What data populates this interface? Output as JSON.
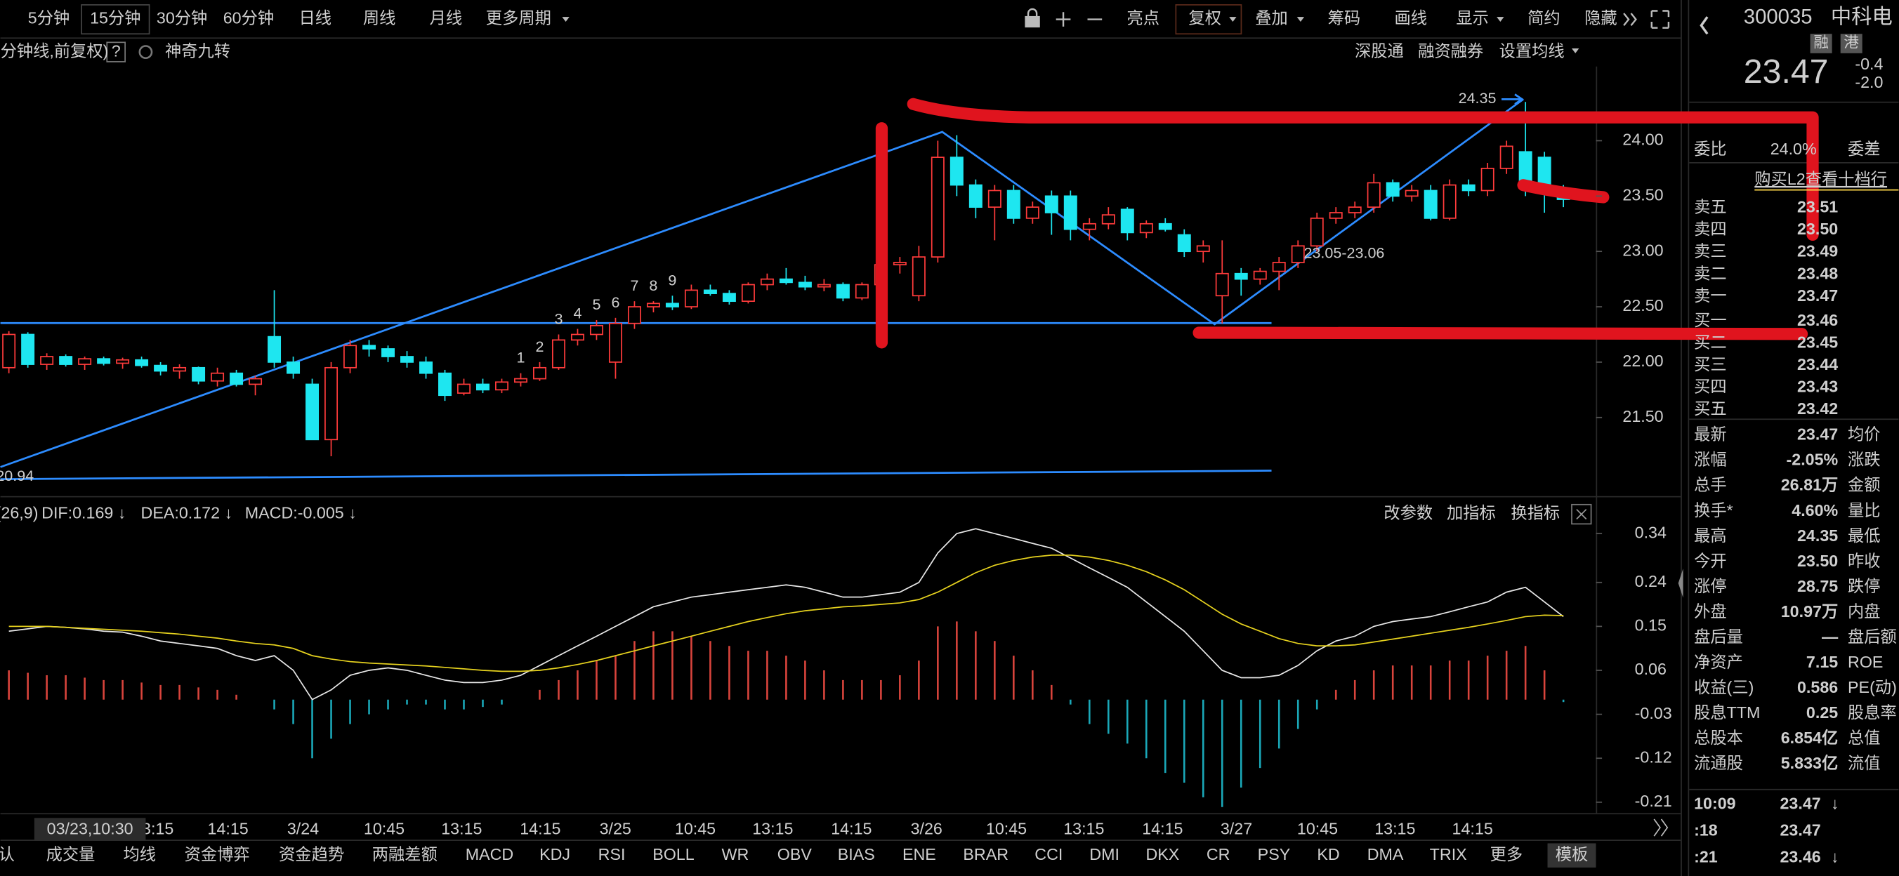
{
  "toolbar": {
    "periods": [
      "5分钟",
      "15分钟",
      "30分钟",
      "60分钟",
      "日线",
      "周线",
      "月线",
      "更多周期"
    ],
    "active": 1,
    "tools": [
      "亮点",
      "复权",
      "叠加",
      "筹码",
      "画线",
      "显示",
      "简约",
      "隐藏"
    ],
    "active_tool": 1
  },
  "subheader": {
    "title": "分钟线,前复权)",
    "help": "?",
    "plugin": "神奇九转",
    "links": [
      "深股通",
      "融资融券",
      "设置均线"
    ]
  },
  "chart_data": [
    {
      "type": "candlestick",
      "ylim": [
        20.79,
        24.67
      ],
      "yticks": [
        {
          "value": 24,
          "label": "24.00"
        },
        {
          "value": 23.5,
          "label": "23.50"
        },
        {
          "value": 23,
          "label": "23.00"
        },
        {
          "value": 22.5,
          "label": "22.50"
        },
        {
          "value": 22,
          "label": "22.00"
        },
        {
          "value": 21.5,
          "label": "21.50"
        }
      ],
      "up_color": "#ff3b3b",
      "down_color": "#1ee6f0",
      "ohlc": [
        [
          21.95,
          22.28,
          21.9,
          22.25
        ],
        [
          22.25,
          22.27,
          21.95,
          21.98
        ],
        [
          21.98,
          22.08,
          21.93,
          22.05
        ],
        [
          22.05,
          22.07,
          21.96,
          21.98
        ],
        [
          21.98,
          22.05,
          21.93,
          22.03
        ],
        [
          22.03,
          22.05,
          21.97,
          21.99
        ],
        [
          21.99,
          22.04,
          21.94,
          22.02
        ],
        [
          22.02,
          22.05,
          21.95,
          21.97
        ],
        [
          21.97,
          22.0,
          21.88,
          21.92
        ],
        [
          21.92,
          21.98,
          21.85,
          21.95
        ],
        [
          21.95,
          21.96,
          21.8,
          21.83
        ],
        [
          21.83,
          21.95,
          21.78,
          21.9
        ],
        [
          21.9,
          21.93,
          21.78,
          21.8
        ],
        [
          21.8,
          21.88,
          21.7,
          21.85
        ],
        [
          22.23,
          22.65,
          21.95,
          22.0
        ],
        [
          22.0,
          22.05,
          21.85,
          21.9
        ],
        [
          21.8,
          21.85,
          21.3,
          21.3
        ],
        [
          21.3,
          22.0,
          21.15,
          21.95
        ],
        [
          21.95,
          22.2,
          21.9,
          22.15
        ],
        [
          22.15,
          22.2,
          22.05,
          22.12
        ],
        [
          22.12,
          22.15,
          22.0,
          22.05
        ],
        [
          22.05,
          22.1,
          21.95,
          22.0
        ],
        [
          22.0,
          22.05,
          21.85,
          21.9
        ],
        [
          21.9,
          21.93,
          21.65,
          21.7
        ],
        [
          21.72,
          21.85,
          21.7,
          21.8
        ],
        [
          21.8,
          21.85,
          21.72,
          21.75
        ],
        [
          21.75,
          21.85,
          21.72,
          21.82
        ],
        [
          21.82,
          21.9,
          21.78,
          21.85
        ],
        [
          21.85,
          22.0,
          21.83,
          21.95
        ],
        [
          21.95,
          22.25,
          21.93,
          22.2
        ],
        [
          22.2,
          22.3,
          22.15,
          22.25
        ],
        [
          22.25,
          22.38,
          22.2,
          22.33
        ],
        [
          22.0,
          22.4,
          21.85,
          22.35
        ],
        [
          22.35,
          22.55,
          22.3,
          22.5
        ],
        [
          22.5,
          22.55,
          22.45,
          22.53
        ],
        [
          22.53,
          22.6,
          22.47,
          22.5
        ],
        [
          22.5,
          22.7,
          22.48,
          22.65
        ],
        [
          22.65,
          22.7,
          22.6,
          22.62
        ],
        [
          22.62,
          22.65,
          22.52,
          22.55
        ],
        [
          22.55,
          22.72,
          22.53,
          22.7
        ],
        [
          22.7,
          22.8,
          22.65,
          22.75
        ],
        [
          22.75,
          22.85,
          22.7,
          22.72
        ],
        [
          22.72,
          22.78,
          22.65,
          22.68
        ],
        [
          22.68,
          22.75,
          22.64,
          22.7
        ],
        [
          22.7,
          22.72,
          22.55,
          22.58
        ],
        [
          22.58,
          22.72,
          22.56,
          22.7
        ],
        [
          22.7,
          22.9,
          22.65,
          22.88
        ],
        [
          22.88,
          22.95,
          22.8,
          22.9
        ],
        [
          22.6,
          23.05,
          22.55,
          22.95
        ],
        [
          22.95,
          24.0,
          22.9,
          23.85
        ],
        [
          23.85,
          24.05,
          23.5,
          23.6
        ],
        [
          23.6,
          23.65,
          23.3,
          23.4
        ],
        [
          23.4,
          23.6,
          23.1,
          23.55
        ],
        [
          23.55,
          23.6,
          23.25,
          23.3
        ],
        [
          23.3,
          23.45,
          23.25,
          23.4
        ],
        [
          23.5,
          23.55,
          23.15,
          23.35
        ],
        [
          23.5,
          23.55,
          23.1,
          23.2
        ],
        [
          23.2,
          23.3,
          23.1,
          23.25
        ],
        [
          23.25,
          23.4,
          23.2,
          23.33
        ],
        [
          23.38,
          23.4,
          23.1,
          23.17
        ],
        [
          23.17,
          23.28,
          23.12,
          23.25
        ],
        [
          23.25,
          23.3,
          23.18,
          23.2
        ],
        [
          23.15,
          23.2,
          22.95,
          23.0
        ],
        [
          23.0,
          23.1,
          22.9,
          23.05
        ],
        [
          22.6,
          23.1,
          22.35,
          22.8
        ],
        [
          22.8,
          22.85,
          22.6,
          22.75
        ],
        [
          22.75,
          22.85,
          22.7,
          22.82
        ],
        [
          22.82,
          22.95,
          22.65,
          22.9
        ],
        [
          22.9,
          23.1,
          22.85,
          23.05
        ],
        [
          23.05,
          23.35,
          23.0,
          23.3
        ],
        [
          23.3,
          23.4,
          23.25,
          23.35
        ],
        [
          23.35,
          23.45,
          23.3,
          23.4
        ],
        [
          23.4,
          23.7,
          23.35,
          23.62
        ],
        [
          23.62,
          23.65,
          23.45,
          23.5
        ],
        [
          23.5,
          23.6,
          23.45,
          23.55
        ],
        [
          23.55,
          23.6,
          23.28,
          23.3
        ],
        [
          23.3,
          23.65,
          23.28,
          23.6
        ],
        [
          23.6,
          23.65,
          23.5,
          23.55
        ],
        [
          23.55,
          23.8,
          23.5,
          23.75
        ],
        [
          23.75,
          24.0,
          23.7,
          23.95
        ],
        [
          23.9,
          24.35,
          23.5,
          23.6
        ],
        [
          23.85,
          23.9,
          23.35,
          23.55
        ],
        [
          23.55,
          23.6,
          23.4,
          23.47
        ]
      ],
      "annotations": [
        "24.35",
        "20.94",
        "23.05-23.06"
      ],
      "td_sequence": [
        1,
        2,
        3,
        4,
        5,
        6,
        7,
        8,
        9
      ],
      "td_color": "#ffa41c",
      "td_final_color": "#43d96b",
      "x_labels": [
        "3:15",
        "14:15",
        "3/24",
        "10:45",
        "13:15",
        "14:15",
        "3/25",
        "10:45",
        "13:15",
        "14:15",
        "3/26",
        "10:45",
        "13:15",
        "14:15",
        "3/27",
        "10:45",
        "13:15",
        "14:15"
      ],
      "cursor_label": "03/23,10:30"
    },
    {
      "type": "macd",
      "params": "(26,9)",
      "ylim": [
        -0.21,
        0.34
      ],
      "yticks": [
        0.34,
        0.24,
        0.15,
        0.06,
        -0.03,
        -0.12,
        -0.21
      ],
      "tools": [
        "改参数",
        "加指标",
        "换指标"
      ],
      "series": [
        {
          "name": "DIF:0.169 ↓",
          "color": "#e8e8e8",
          "values": [
            0.14,
            0.145,
            0.15,
            0.148,
            0.145,
            0.14,
            0.138,
            0.13,
            0.12,
            0.115,
            0.11,
            0.105,
            0.09,
            0.08,
            0.09,
            0.06,
            0.0,
            0.02,
            0.05,
            0.06,
            0.065,
            0.06,
            0.05,
            0.04,
            0.035,
            0.035,
            0.04,
            0.05,
            0.07,
            0.09,
            0.11,
            0.13,
            0.15,
            0.17,
            0.19,
            0.2,
            0.21,
            0.215,
            0.22,
            0.225,
            0.23,
            0.235,
            0.23,
            0.22,
            0.21,
            0.21,
            0.215,
            0.22,
            0.24,
            0.3,
            0.34,
            0.35,
            0.34,
            0.33,
            0.32,
            0.31,
            0.29,
            0.27,
            0.25,
            0.23,
            0.2,
            0.17,
            0.14,
            0.1,
            0.06,
            0.045,
            0.045,
            0.05,
            0.07,
            0.1,
            0.12,
            0.13,
            0.15,
            0.16,
            0.165,
            0.17,
            0.18,
            0.19,
            0.2,
            0.22,
            0.23,
            0.2,
            0.17
          ]
        },
        {
          "name": "DEA:0.172 ↓",
          "color": "#e6d21e",
          "values": [
            0.15,
            0.15,
            0.15,
            0.148,
            0.146,
            0.144,
            0.142,
            0.14,
            0.137,
            0.134,
            0.13,
            0.126,
            0.12,
            0.115,
            0.112,
            0.105,
            0.09,
            0.083,
            0.078,
            0.075,
            0.073,
            0.071,
            0.069,
            0.066,
            0.063,
            0.06,
            0.058,
            0.058,
            0.06,
            0.065,
            0.072,
            0.08,
            0.09,
            0.1,
            0.11,
            0.12,
            0.13,
            0.14,
            0.15,
            0.16,
            0.168,
            0.176,
            0.182,
            0.186,
            0.19,
            0.192,
            0.195,
            0.198,
            0.205,
            0.22,
            0.24,
            0.26,
            0.275,
            0.285,
            0.292,
            0.296,
            0.296,
            0.292,
            0.285,
            0.275,
            0.262,
            0.245,
            0.225,
            0.2,
            0.175,
            0.155,
            0.14,
            0.125,
            0.115,
            0.11,
            0.11,
            0.112,
            0.118,
            0.124,
            0.13,
            0.136,
            0.142,
            0.148,
            0.155,
            0.162,
            0.17,
            0.173,
            0.172
          ]
        },
        {
          "name": "MACD:-0.005 ↓",
          "color": "#e040e0",
          "up_color": "#d9443c",
          "down_color": "#1aa8b8",
          "values": [
            0.06,
            0.055,
            0.05,
            0.05,
            0.045,
            0.04,
            0.04,
            0.035,
            0.03,
            0.03,
            0.025,
            0.02,
            0.01,
            0.0,
            -0.02,
            -0.05,
            -0.12,
            -0.08,
            -0.05,
            -0.03,
            -0.02,
            -0.01,
            -0.01,
            -0.02,
            -0.02,
            -0.015,
            -0.01,
            0.0,
            0.02,
            0.04,
            0.06,
            0.08,
            0.09,
            0.12,
            0.14,
            0.14,
            0.13,
            0.12,
            0.11,
            0.1,
            0.1,
            0.09,
            0.08,
            0.06,
            0.04,
            0.04,
            0.04,
            0.05,
            0.08,
            0.15,
            0.16,
            0.14,
            0.12,
            0.09,
            0.06,
            0.03,
            -0.01,
            -0.05,
            -0.07,
            -0.09,
            -0.12,
            -0.15,
            -0.17,
            -0.2,
            -0.22,
            -0.18,
            -0.14,
            -0.1,
            -0.06,
            -0.02,
            0.02,
            0.04,
            0.06,
            0.07,
            0.07,
            0.07,
            0.08,
            0.08,
            0.09,
            0.1,
            0.11,
            0.06,
            -0.005
          ]
        }
      ]
    }
  ],
  "tabs": {
    "items": [
      "认",
      "成交量",
      "均线",
      "资金博弈",
      "资金趋势",
      "两融差额",
      "MACD",
      "KDJ",
      "RSI",
      "BOLL",
      "WR",
      "OBV",
      "BIAS",
      "ENE",
      "BRAR",
      "CCI",
      "DMI",
      "DKX",
      "CR",
      "PSY",
      "KD",
      "DMA",
      "TRIX",
      "更多",
      "模板"
    ],
    "active": 6
  },
  "quote": {
    "code": "300035",
    "name": "中科电",
    "badges": [
      "融",
      "港"
    ],
    "price": "23.47",
    "change": "-0.4",
    "pct": "-2.0"
  },
  "order_book": {
    "ratio_label": "委比",
    "ratio": "24.0%",
    "diff_label": "委差",
    "upgrade": "购买L2查看十档行",
    "rows": [
      [
        "卖五",
        "23.51"
      ],
      [
        "卖四",
        "23.50"
      ],
      [
        "卖三",
        "23.49"
      ],
      [
        "卖二",
        "23.48"
      ],
      [
        "卖一",
        "23.47"
      ],
      [
        "买一",
        "23.46"
      ],
      [
        "买二",
        "23.45"
      ],
      [
        "买三",
        "23.44"
      ],
      [
        "买四",
        "23.43"
      ],
      [
        "买五",
        "23.42"
      ]
    ]
  },
  "stats": [
    {
      "label": "最新",
      "value": "23.47",
      "label2": "均价",
      "color": "#2fe05a"
    },
    {
      "label": "涨幅",
      "value": "-2.05%",
      "label2": "涨跌",
      "color": "#2fe05a"
    },
    {
      "label": "总手",
      "value": "26.81万",
      "label2": "金额",
      "color": "#e8e8e8"
    },
    {
      "label": "换手*",
      "value": "4.60%",
      "label2": "量比",
      "color": "#e8e8e8"
    },
    {
      "label": "最高",
      "value": "24.35",
      "label2": "最低",
      "color": "#ff4a4a"
    },
    {
      "label": "今开",
      "value": "23.50",
      "label2": "昨收",
      "color": "#2fe05a"
    },
    {
      "label": "涨停",
      "value": "28.75",
      "label2": "跌停",
      "color": "#ff4a4a"
    },
    {
      "label": "外盘",
      "value": "10.97万",
      "label2": "内盘",
      "color": "#ff4a4a"
    },
    {
      "label": "盘后量",
      "value": "—",
      "label2": "盘后额",
      "color": "#e8e8e8"
    },
    {
      "label": "净资产",
      "value": "7.15",
      "label2": "ROE",
      "color": "#e8e8e8"
    },
    {
      "label": "收益(三)",
      "value": "0.586",
      "label2": "PE(动)",
      "color": "#e8e8e8"
    },
    {
      "label": "股息TTM",
      "value": "0.25",
      "label2": "股息率",
      "color": "#e8e8e8"
    },
    {
      "label": "总股本",
      "value": "6.854亿",
      "label2": "总值",
      "color": "#e8e8e8"
    },
    {
      "label": "流通股",
      "value": "5.833亿",
      "label2": "流值",
      "color": "#e8e8e8"
    }
  ],
  "trades": [
    {
      "time": "10:09",
      "price": "23.47",
      "dir": "↓"
    },
    {
      "time": ":18",
      "price": "23.47"
    },
    {
      "time": ":21",
      "price": "23.46",
      "dir": "↓"
    }
  ]
}
